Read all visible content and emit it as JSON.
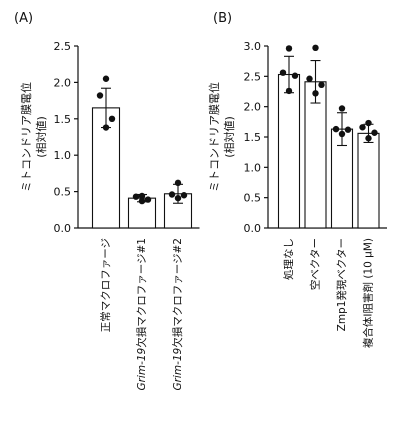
{
  "chart_data": [
    {
      "type": "bar",
      "panel_label": "(A)",
      "ylabel": "ミトコンドリア膜電位\n(相対値)",
      "ylim": [
        0,
        2.5
      ],
      "yticks": [
        "0.0",
        "0.5",
        "1.0",
        "1.5",
        "2.0",
        "2.5"
      ],
      "categories": [
        {
          "prefix": "",
          "italic": "",
          "rest": "正常マクロファージ"
        },
        {
          "prefix": "",
          "italic": "Grim-19",
          "rest": "欠損マクロファージ#1"
        },
        {
          "prefix": "",
          "italic": "Grim-19",
          "rest": "欠損マクロファージ#2"
        }
      ],
      "values": [
        1.65,
        0.41,
        0.47
      ],
      "error": [
        0.27,
        0.05,
        0.13
      ],
      "points": [
        [
          2.05,
          1.82,
          1.5,
          1.38
        ],
        [
          0.44,
          0.43,
          0.39,
          0.37
        ],
        [
          0.62,
          0.46,
          0.45,
          0.41
        ]
      ],
      "legend": "none",
      "grid": false
    },
    {
      "type": "bar",
      "panel_label": "(B)",
      "ylabel": "ミトコンドリア膜電位\n(相対値)",
      "ylim": [
        0,
        3.0
      ],
      "yticks": [
        "0.0",
        "0.5",
        "1.0",
        "1.5",
        "2.0",
        "2.5",
        "3.0"
      ],
      "categories": [
        {
          "prefix": "",
          "italic": "",
          "rest": "処理なし"
        },
        {
          "prefix": "",
          "italic": "",
          "rest": "空ベクター"
        },
        {
          "prefix": "",
          "italic": "",
          "rest": "Zmp1発現ベクター"
        },
        {
          "prefix": "",
          "italic": "",
          "rest": "複合体I阻害剤 (10 µM)"
        }
      ],
      "values": [
        2.53,
        2.41,
        1.63,
        1.56
      ],
      "error": [
        0.3,
        0.35,
        0.27,
        0.15
      ],
      "points": [
        [
          2.96,
          2.56,
          2.51,
          2.26
        ],
        [
          2.97,
          2.46,
          2.36,
          2.22
        ],
        [
          1.97,
          1.63,
          1.62,
          1.55
        ],
        [
          1.73,
          1.66,
          1.57,
          1.48
        ]
      ],
      "legend": "none",
      "grid": false
    }
  ]
}
